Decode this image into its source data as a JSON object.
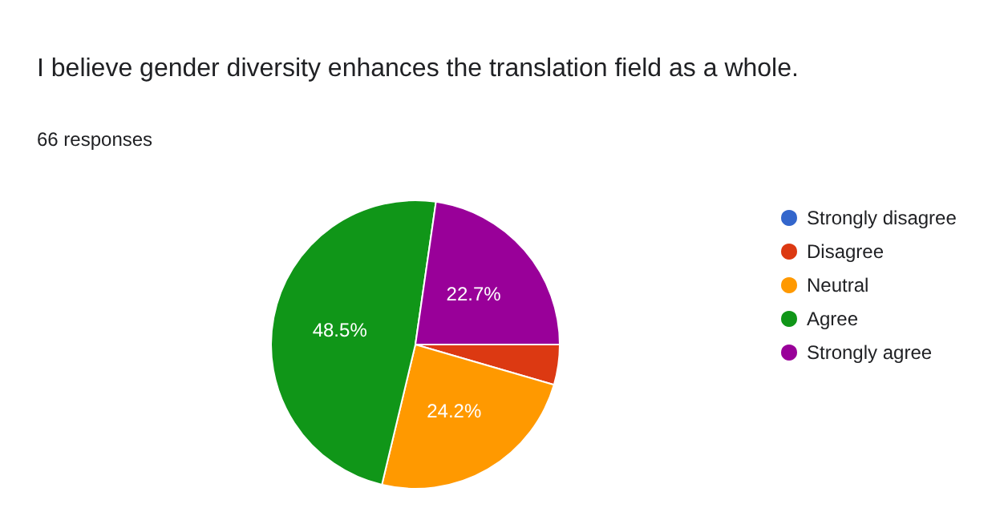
{
  "chart_data": {
    "type": "pie",
    "title": "I believe gender diversity enhances the translation field as a whole.",
    "subtitle": "66 responses",
    "categories": [
      "Strongly disagree",
      "Disagree",
      "Neutral",
      "Agree",
      "Strongly agree"
    ],
    "values": [
      0,
      4.5,
      24.2,
      48.5,
      22.7
    ],
    "colors": [
      "#3366cc",
      "#dc3912",
      "#ff9900",
      "#109618",
      "#990099"
    ],
    "value_labels": [
      null,
      null,
      "24.2%",
      "48.5%",
      "22.7%"
    ],
    "legend": "right"
  }
}
